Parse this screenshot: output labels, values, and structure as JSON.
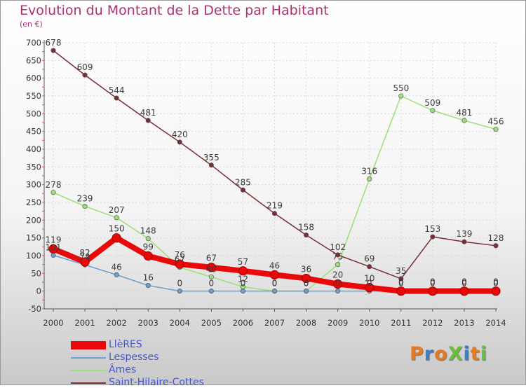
{
  "title": "Evolution du Montant de la Dette par Habitant",
  "unit": "(en €)",
  "logo": {
    "text": "ProXiti",
    "colors": [
      "#e8791c",
      "#3a7dc9",
      "#e8791c",
      "#6abf3a",
      "#3a7dc9",
      "#e8791c",
      "#6abf3a"
    ]
  },
  "chart_data": {
    "type": "line",
    "x": [
      "2000",
      "2001",
      "2002",
      "2003",
      "2004",
      "2005",
      "2006",
      "2007",
      "2008",
      "2009",
      "2010",
      "2011",
      "2012",
      "2013",
      "2014"
    ],
    "ylim": [
      -50,
      700
    ],
    "yticks": [
      -50,
      0,
      50,
      100,
      150,
      200,
      250,
      300,
      350,
      400,
      450,
      500,
      550,
      600,
      650,
      700
    ],
    "grid": true,
    "series": [
      {
        "name": "LlèRES",
        "color": "#e80a0a",
        "width": 8,
        "values": [
          119,
          82,
          150,
          99,
          76,
          67,
          57,
          46,
          36,
          20,
          10,
          0,
          0,
          0,
          0
        ]
      },
      {
        "name": "Lespesses",
        "color": "#6a9fd0",
        "width": 1.5,
        "values": [
          101,
          74,
          46,
          16,
          0,
          0,
          0,
          0,
          0,
          0,
          0,
          0,
          0,
          0,
          0
        ]
      },
      {
        "name": "Âmes",
        "color": "#9be07a",
        "width": 1.5,
        "values": [
          278,
          239,
          207,
          148,
          67,
          40,
          12,
          0,
          0,
          75,
          316,
          550,
          509,
          481,
          456
        ]
      },
      {
        "name": "Saint-Hilaire-Cottes",
        "color": "#7a2d34",
        "width": 1.5,
        "values": [
          678,
          609,
          544,
          481,
          420,
          355,
          285,
          219,
          158,
          102,
          69,
          35,
          153,
          139,
          128
        ]
      }
    ]
  }
}
